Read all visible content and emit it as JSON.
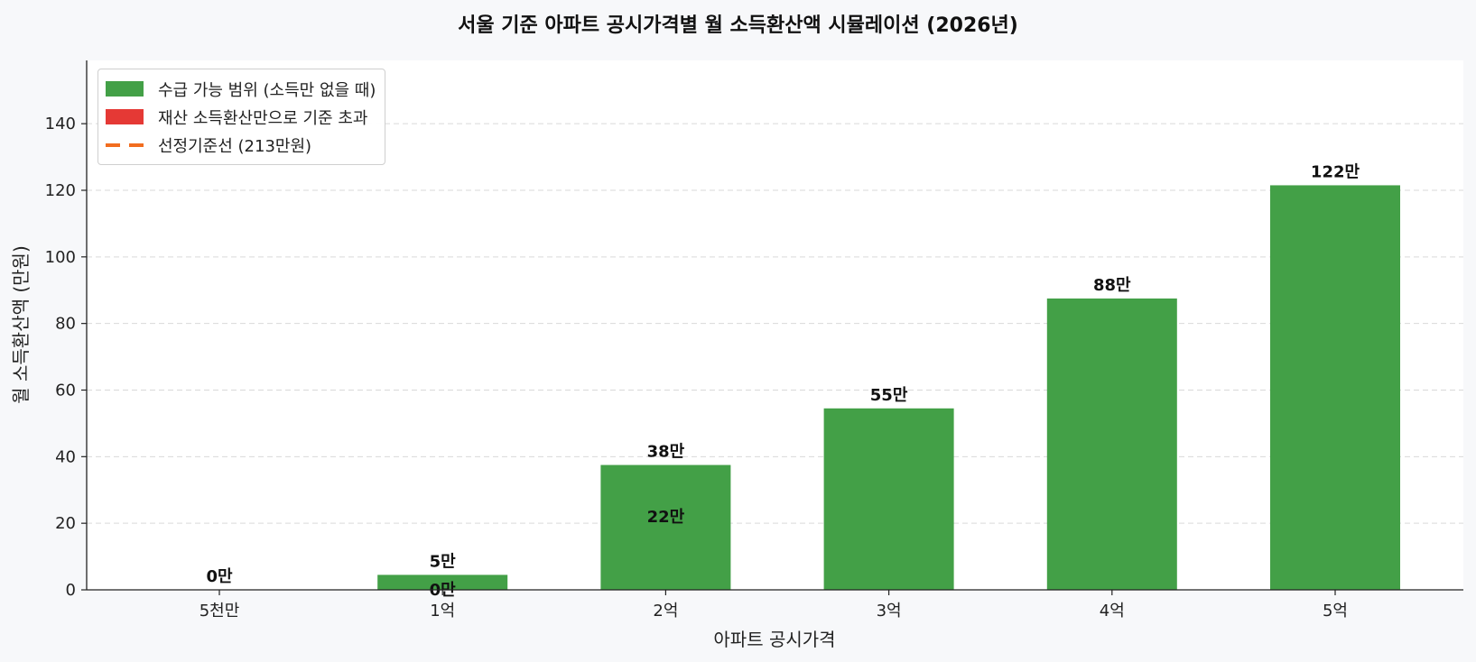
{
  "chart_data": {
    "type": "bar",
    "title": "서울 기준 아파트 공시가격별 월 소득환산액 시뮬레이션 (2026년)",
    "xlabel": "아파트 공시가격",
    "ylabel": "월 소득환산액 (만원)",
    "categories": [
      "5천만",
      "1억",
      "2억",
      "3억",
      "4억",
      "5억"
    ],
    "series": [
      {
        "name": "수급 가능 범위 (소득만 없을 때)",
        "color": "#43a047",
        "values": [
          0,
          4.5,
          37.5,
          54.5,
          87.5,
          121.5
        ],
        "labels": [
          "0만",
          "5만",
          "38만",
          "55만",
          "88만",
          "122만"
        ]
      }
    ],
    "inner_labels": [
      {
        "category": "1억",
        "label": "0만",
        "value": 0
      },
      {
        "category": "2억",
        "label": "22만",
        "value": 22
      }
    ],
    "legend": [
      {
        "label": "수급 가능 범위 (소득만 없을 때)",
        "color": "#43a047",
        "kind": "patch"
      },
      {
        "label": "재산 소득환산만으로 기준 초과",
        "color": "#e53935",
        "kind": "patch"
      },
      {
        "label": "선정기준선 (213만원)",
        "color": "#f26d1f",
        "kind": "dashed-line"
      }
    ],
    "legend_position": "top-left",
    "reference_line": {
      "label": "선정기준선 (213만원)",
      "value": 213
    },
    "ylim": [
      0,
      159
    ],
    "yticks": [
      0,
      20,
      40,
      60,
      80,
      100,
      120,
      140
    ],
    "grid": "y-dashed"
  }
}
